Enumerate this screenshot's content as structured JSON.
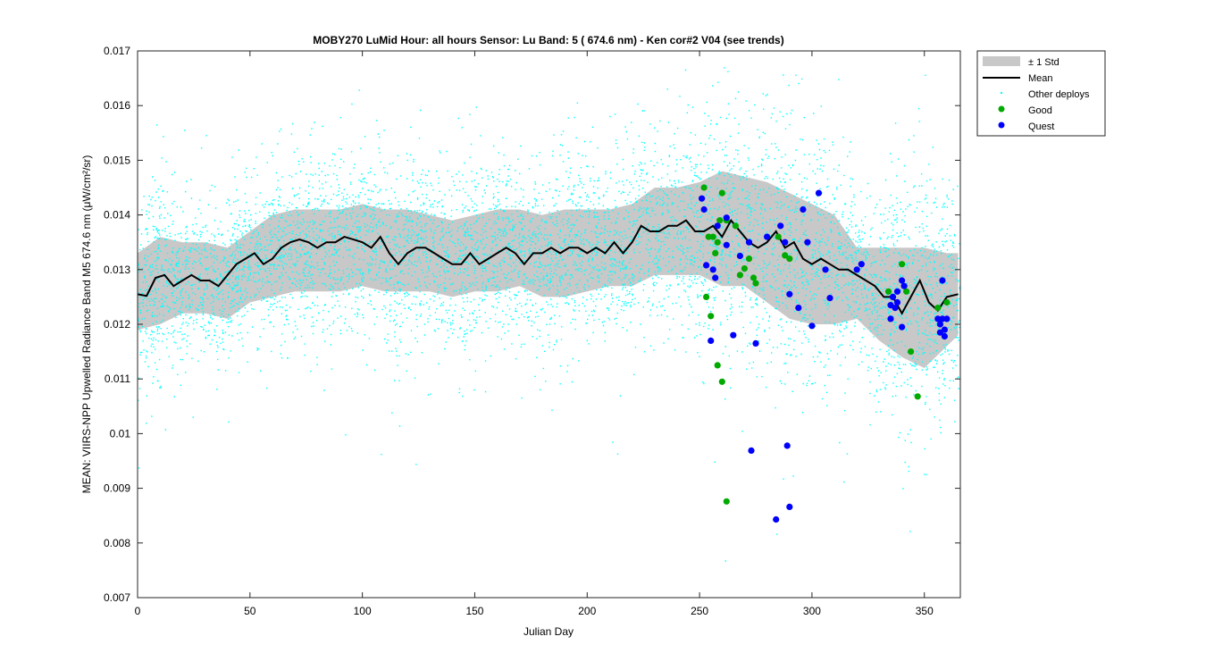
{
  "chart_data": {
    "type": "scatter",
    "title": "MOBY270   LuMid  Hour: all hours  Sensor: Lu Band: 5 ( 674.6 nm)  - Ken cor#2 V04 (see trends)",
    "xlabel": "Julian Day",
    "ylabel": "MEAN: VIIRS-NPP Upwelled Radiance Band M5 674.6 nm (μW/cm²/sr)",
    "xlim": [
      0,
      366
    ],
    "ylim": [
      0.007,
      0.017
    ],
    "xticks": [
      0,
      50,
      100,
      150,
      200,
      250,
      300,
      350
    ],
    "yticks": [
      0.007,
      0.008,
      0.009,
      0.01,
      0.011,
      0.012,
      0.013,
      0.014,
      0.015,
      0.016,
      0.017
    ],
    "xtick_labels": [
      "0",
      "50",
      "100",
      "150",
      "200",
      "250",
      "300",
      "350"
    ],
    "ytick_labels": [
      "0.007",
      "0.008",
      "0.009",
      "0.01",
      "0.011",
      "0.012",
      "0.013",
      "0.014",
      "0.015",
      "0.016",
      "0.017"
    ],
    "legend_position": "outside-top-right",
    "grid": false,
    "colors": {
      "std_band": "#c8c8c8",
      "mean": "#000000",
      "other": "#00ffff",
      "good": "#00aa00",
      "quest": "#0000ff"
    },
    "series": [
      {
        "name": "± 1 Std",
        "kind": "band",
        "x": [
          0,
          10,
          20,
          30,
          40,
          50,
          60,
          70,
          80,
          90,
          100,
          110,
          120,
          130,
          140,
          150,
          160,
          170,
          180,
          190,
          200,
          210,
          220,
          230,
          240,
          250,
          260,
          270,
          280,
          290,
          300,
          310,
          320,
          330,
          340,
          350,
          360,
          365
        ],
        "upper": [
          0.0133,
          0.0136,
          0.0135,
          0.0135,
          0.0134,
          0.0137,
          0.014,
          0.0141,
          0.0141,
          0.0141,
          0.0142,
          0.0141,
          0.0141,
          0.014,
          0.0139,
          0.014,
          0.0141,
          0.0141,
          0.014,
          0.0141,
          0.0141,
          0.0141,
          0.0142,
          0.0145,
          0.0145,
          0.0146,
          0.0148,
          0.0147,
          0.0146,
          0.0144,
          0.0142,
          0.014,
          0.0134,
          0.0134,
          0.0134,
          0.0134,
          0.0133,
          0.0133
        ],
        "lower": [
          0.0119,
          0.012,
          0.0122,
          0.0122,
          0.0121,
          0.0124,
          0.0125,
          0.0126,
          0.0126,
          0.0126,
          0.0127,
          0.0126,
          0.0126,
          0.0126,
          0.0125,
          0.0126,
          0.0126,
          0.0127,
          0.0125,
          0.0125,
          0.0126,
          0.0127,
          0.0127,
          0.0129,
          0.0129,
          0.0129,
          0.0127,
          0.0127,
          0.0124,
          0.0121,
          0.012,
          0.012,
          0.0121,
          0.0117,
          0.0114,
          0.0112,
          0.0116,
          0.0118
        ]
      },
      {
        "name": "Mean",
        "kind": "line",
        "x": [
          0,
          4,
          8,
          12,
          16,
          20,
          24,
          28,
          32,
          36,
          40,
          44,
          48,
          52,
          56,
          60,
          64,
          68,
          72,
          76,
          80,
          84,
          88,
          92,
          96,
          100,
          104,
          108,
          112,
          116,
          120,
          124,
          128,
          132,
          136,
          140,
          144,
          148,
          152,
          156,
          160,
          164,
          168,
          172,
          176,
          180,
          184,
          188,
          192,
          196,
          200,
          204,
          208,
          212,
          216,
          220,
          224,
          228,
          232,
          236,
          240,
          244,
          248,
          252,
          256,
          260,
          264,
          268,
          272,
          276,
          280,
          284,
          288,
          292,
          296,
          300,
          304,
          308,
          312,
          316,
          320,
          324,
          328,
          332,
          336,
          340,
          344,
          348,
          352,
          356,
          360,
          365
        ],
        "y": [
          0.01255,
          0.01252,
          0.01285,
          0.0129,
          0.0127,
          0.0128,
          0.0129,
          0.0128,
          0.0128,
          0.0127,
          0.0129,
          0.0131,
          0.0132,
          0.0133,
          0.0131,
          0.0132,
          0.0134,
          0.0135,
          0.01355,
          0.0135,
          0.0134,
          0.0135,
          0.0135,
          0.0136,
          0.01355,
          0.0135,
          0.0134,
          0.0136,
          0.0133,
          0.0131,
          0.0133,
          0.0134,
          0.0134,
          0.0133,
          0.0132,
          0.0131,
          0.0131,
          0.0133,
          0.0131,
          0.0132,
          0.0133,
          0.0134,
          0.0133,
          0.0131,
          0.0133,
          0.0133,
          0.0134,
          0.0133,
          0.0134,
          0.0134,
          0.0133,
          0.0134,
          0.0133,
          0.0135,
          0.0133,
          0.0135,
          0.0138,
          0.0137,
          0.0137,
          0.0138,
          0.0138,
          0.0139,
          0.0137,
          0.0137,
          0.0138,
          0.0136,
          0.0139,
          0.0137,
          0.0135,
          0.0134,
          0.0135,
          0.0137,
          0.0134,
          0.0135,
          0.0132,
          0.0131,
          0.0132,
          0.0131,
          0.013,
          0.013,
          0.0129,
          0.0128,
          0.0127,
          0.0125,
          0.0125,
          0.0122,
          0.0125,
          0.0128,
          0.0124,
          0.01225,
          0.0125,
          0.01255
        ]
      },
      {
        "name": "Other deploys",
        "kind": "scatter",
        "generated": true,
        "count": 7000,
        "sigma_scale": 1.1
      },
      {
        "name": "Good",
        "kind": "scatter",
        "x": [
          252,
          253,
          254,
          255,
          256,
          257,
          258,
          258,
          259,
          260,
          260,
          262,
          262,
          266,
          268,
          270,
          272,
          274,
          275,
          285,
          288,
          290,
          334,
          336,
          340,
          342,
          344,
          347,
          356,
          360
        ],
        "y": [
          0.0145,
          0.0125,
          0.0136,
          0.01215,
          0.0136,
          0.0133,
          0.0135,
          0.01125,
          0.0139,
          0.0144,
          0.01095,
          0.0139,
          0.00876,
          0.0138,
          0.0129,
          0.01302,
          0.0132,
          0.01285,
          0.01275,
          0.0136,
          0.01326,
          0.0132,
          0.0126,
          0.0125,
          0.0131,
          0.0126,
          0.0115,
          0.01068,
          0.0123,
          0.0124
        ]
      },
      {
        "name": "Quest",
        "kind": "scatter",
        "x": [
          251,
          252,
          253,
          255,
          256,
          257,
          258,
          262,
          262,
          265,
          268,
          272,
          273,
          275,
          280,
          284,
          286,
          288,
          289,
          290,
          290,
          294,
          296,
          298,
          300,
          303,
          306,
          308,
          320,
          322,
          335,
          335,
          336,
          337,
          338,
          338,
          340,
          340,
          341,
          356,
          357,
          357,
          358,
          358,
          359,
          359,
          360
        ],
        "y": [
          0.0143,
          0.0141,
          0.01308,
          0.0117,
          0.013,
          0.01285,
          0.0138,
          0.01395,
          0.01345,
          0.0118,
          0.01325,
          0.0135,
          0.00969,
          0.01165,
          0.0136,
          0.00843,
          0.0138,
          0.0135,
          0.00978,
          0.00866,
          0.01255,
          0.0123,
          0.0141,
          0.0135,
          0.01197,
          0.0144,
          0.013,
          0.01248,
          0.013,
          0.0131,
          0.0121,
          0.01235,
          0.0125,
          0.0123,
          0.0124,
          0.0126,
          0.01195,
          0.0128,
          0.0127,
          0.0121,
          0.012,
          0.01185,
          0.0128,
          0.0121,
          0.0119,
          0.01178,
          0.0121
        ]
      }
    ]
  }
}
